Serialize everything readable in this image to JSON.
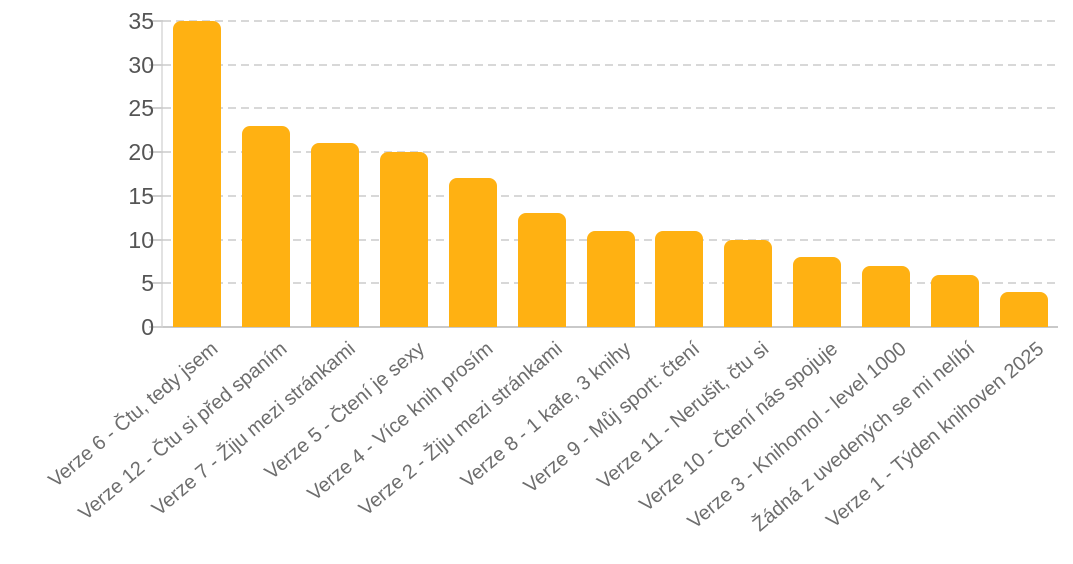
{
  "chart_data": {
    "type": "bar",
    "title": "",
    "xlabel": "",
    "ylabel": "",
    "categories": [
      "Verze 6 - Čtu, tedy jsem",
      "Verze 12 - Čtu si před spaním",
      "Verze 7 - Žiju mezi stránkami",
      "Verze 5 - Čtení je sexy",
      "Verze 4 - Více knih prosím",
      "Verze 2 - Žiju mezi stránkami",
      "Verze 8 - 1 kafe, 3 knihy",
      "Verze 9 - Můj sport: čtení",
      "Verze 11 - Nerušit, čtu si",
      "Verze 10 - Čtení nás spojuje",
      "Verze 3 - Knihomol - level 1000",
      "Žádná z uvedených se mi nelíbí",
      "Verze 1 - Týden knihoven 2025"
    ],
    "values": [
      35,
      23,
      21,
      20,
      17,
      13,
      11,
      11,
      10,
      8,
      7,
      6,
      4
    ],
    "ylim": [
      0,
      35
    ],
    "yticks": [
      0,
      5,
      10,
      15,
      20,
      25,
      30,
      35
    ],
    "grid": "horizontal-dashed",
    "legend_position": "none",
    "x_label_rotation_deg": -40
  },
  "colors": {
    "bar": "#ffb112",
    "gridline": "#d8d8d8",
    "baseline": "#c9c9c9",
    "axis_line": "#e2e2e2",
    "tick": "#cfcfcf",
    "y_label_text": "#555555",
    "x_label_text": "#6d6d6d",
    "background": "#ffffff"
  }
}
